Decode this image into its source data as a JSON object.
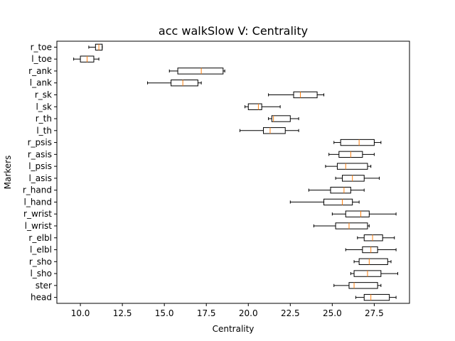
{
  "chart_data": {
    "type": "boxplot",
    "orientation": "horizontal",
    "title": "acc walkSlow V: Centrality",
    "xlabel": "Centrality",
    "ylabel": "Markers",
    "xlim": [
      8.6,
      29.6
    ],
    "xticks": [
      10.0,
      12.5,
      15.0,
      17.5,
      20.0,
      22.5,
      25.0,
      27.5
    ],
    "xtick_labels": [
      "10.0",
      "12.5",
      "15.0",
      "17.5",
      "20.0",
      "22.5",
      "25.0",
      "27.5"
    ],
    "grid": false,
    "colors": {
      "box": "#000000",
      "median": "#ff7f0e",
      "whisker": "#000000"
    },
    "categories": [
      "r_toe",
      "l_toe",
      "r_ank",
      "l_ank",
      "r_sk",
      "l_sk",
      "r_th",
      "l_th",
      "r_psis",
      "r_asis",
      "l_psis",
      "l_asis",
      "r_hand",
      "l_hand",
      "r_wrist",
      "l_wrist",
      "r_elbl",
      "l_elbl",
      "r_sho",
      "l_sho",
      "ster",
      "head"
    ],
    "boxes": [
      {
        "label": "r_toe",
        "whislo": 10.5,
        "q1": 10.9,
        "med": 11.1,
        "q3": 11.3,
        "whishi": 11.3
      },
      {
        "label": "l_toe",
        "whislo": 9.6,
        "q1": 10.0,
        "med": 10.4,
        "q3": 10.8,
        "whishi": 11.1
      },
      {
        "label": "r_ank",
        "whislo": 15.3,
        "q1": 15.8,
        "med": 17.2,
        "q3": 18.5,
        "whishi": 18.6
      },
      {
        "label": "l_ank",
        "whislo": 14.0,
        "q1": 15.4,
        "med": 16.1,
        "q3": 17.0,
        "whishi": 17.2
      },
      {
        "label": "r_sk",
        "whislo": 21.2,
        "q1": 22.7,
        "med": 23.1,
        "q3": 24.1,
        "whishi": 24.5
      },
      {
        "label": "l_sk",
        "whislo": 19.8,
        "q1": 20.0,
        "med": 20.6,
        "q3": 20.8,
        "whishi": 21.9
      },
      {
        "label": "r_th",
        "whislo": 21.2,
        "q1": 21.4,
        "med": 21.5,
        "q3": 22.5,
        "whishi": 23.0
      },
      {
        "label": "l_th",
        "whislo": 19.5,
        "q1": 20.9,
        "med": 21.3,
        "q3": 22.2,
        "whishi": 23.0
      },
      {
        "label": "r_psis",
        "whislo": 25.1,
        "q1": 25.5,
        "med": 26.6,
        "q3": 27.5,
        "whishi": 27.9
      },
      {
        "label": "r_asis",
        "whislo": 24.8,
        "q1": 25.4,
        "med": 26.1,
        "q3": 26.8,
        "whishi": 27.5
      },
      {
        "label": "l_psis",
        "whislo": 24.6,
        "q1": 25.3,
        "med": 25.8,
        "q3": 27.1,
        "whishi": 27.3
      },
      {
        "label": "l_asis",
        "whislo": 25.2,
        "q1": 25.6,
        "med": 26.2,
        "q3": 26.9,
        "whishi": 27.8
      },
      {
        "label": "r_hand",
        "whislo": 23.6,
        "q1": 24.9,
        "med": 25.7,
        "q3": 26.1,
        "whishi": 26.9
      },
      {
        "label": "l_hand",
        "whislo": 22.5,
        "q1": 24.5,
        "med": 25.6,
        "q3": 26.2,
        "whishi": 26.6
      },
      {
        "label": "r_wrist",
        "whislo": 25.0,
        "q1": 25.8,
        "med": 26.7,
        "q3": 27.2,
        "whishi": 28.8
      },
      {
        "label": "l_wrist",
        "whislo": 23.9,
        "q1": 25.2,
        "med": 26.0,
        "q3": 27.1,
        "whishi": 27.2
      },
      {
        "label": "r_elbl",
        "whislo": 26.5,
        "q1": 26.9,
        "med": 27.4,
        "q3": 28.0,
        "whishi": 28.7
      },
      {
        "label": "l_elbl",
        "whislo": 25.8,
        "q1": 26.8,
        "med": 27.3,
        "q3": 27.7,
        "whishi": 28.8
      },
      {
        "label": "r_sho",
        "whislo": 26.3,
        "q1": 26.6,
        "med": 27.2,
        "q3": 28.3,
        "whishi": 28.5
      },
      {
        "label": "l_sho",
        "whislo": 26.1,
        "q1": 26.3,
        "med": 27.1,
        "q3": 27.9,
        "whishi": 28.9
      },
      {
        "label": "ster",
        "whislo": 25.1,
        "q1": 26.0,
        "med": 26.3,
        "q3": 27.7,
        "whishi": 27.9
      },
      {
        "label": "head",
        "whislo": 26.4,
        "q1": 26.9,
        "med": 27.3,
        "q3": 28.4,
        "whishi": 28.8
      }
    ]
  }
}
